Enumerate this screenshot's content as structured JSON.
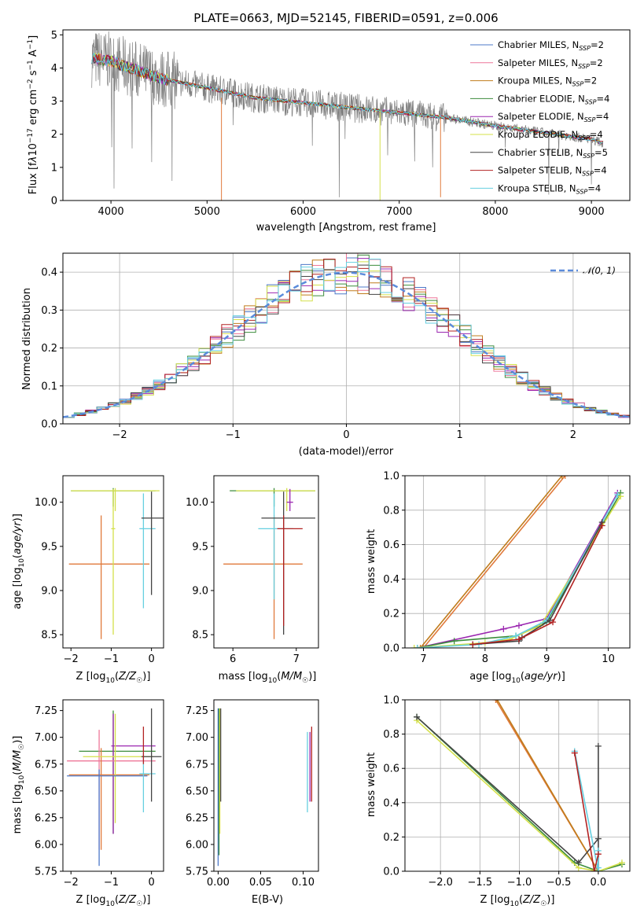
{
  "chart_data": [
    {
      "type": "line",
      "title": "PLATE=0663, MJD=52145, FIBERID=0591, z=0.006",
      "xlabel": "wavelength [Angstrom, rest frame]",
      "ylabel": "Flux [f_λ 10^-17 erg cm^-2 s^-1 A^-1]",
      "xlim": [
        3500,
        9400
      ],
      "ylim": [
        0,
        5.15
      ],
      "xticks": [
        4000,
        5000,
        6000,
        7000,
        8000,
        9000
      ],
      "yticks": [
        0,
        1,
        2,
        3,
        4,
        5
      ],
      "legend_position": "top-right",
      "series": [
        {
          "name": "Chabrier MILES, N_SSP=2",
          "color": "#4c78c8"
        },
        {
          "name": "Salpeter MILES, N_SSP=2",
          "color": "#ee7799"
        },
        {
          "name": "Kroupa MILES, N_SSP=2",
          "color": "#c07c1c"
        },
        {
          "name": "Chabrier ELODIE, N_SSP=4",
          "color": "#3c8c3c"
        },
        {
          "name": "Salpeter ELODIE, N_SSP=4",
          "color": "#9b27b0"
        },
        {
          "name": "Kroupa ELODIE, N_SSP=4",
          "color": "#d4e04a"
        },
        {
          "name": "Chabrier STELIB, N_SSP=5",
          "color": "#444444"
        },
        {
          "name": "Salpeter STELIB, N_SSP=4",
          "color": "#b22222"
        },
        {
          "name": "Kroupa STELIB, N_SSP=4",
          "color": "#66cfe0"
        }
      ],
      "continuum": {
        "x": [
          3800,
          4000,
          4500,
          5000,
          5500,
          6000,
          6500,
          7000,
          7500,
          8000,
          8500,
          9000,
          9100
        ],
        "y": [
          4.3,
          4.2,
          3.7,
          3.4,
          3.1,
          2.95,
          2.8,
          2.65,
          2.5,
          2.25,
          2.05,
          1.85,
          1.75
        ]
      }
    },
    {
      "type": "line",
      "xlabel": "(data-model)/error",
      "ylabel": "Normed distribution",
      "xlim": [
        -2.5,
        2.5
      ],
      "ylim": [
        0,
        0.45
      ],
      "xticks": [
        -2,
        -1,
        0,
        1,
        2
      ],
      "yticks": [
        0.0,
        0.1,
        0.2,
        0.3,
        0.4
      ],
      "legend": "𝒩(0, 1)",
      "legend_position": "top-right",
      "gaussian": {
        "mean": 0,
        "sigma": 1,
        "color": "#5b8bdb"
      },
      "bin_width": 0.1
    },
    {
      "type": "scatter",
      "xlabel": "Z [log10(Z/Z☉)]",
      "ylabel": "age  [log10(age/yr)]",
      "xlim": [
        -2.2,
        0.3
      ],
      "ylim": [
        8.35,
        10.3
      ],
      "xticks": [
        -2,
        -1,
        0
      ],
      "yticks": [
        8.5,
        9.0,
        9.5,
        10.0
      ],
      "points": [
        {
          "x": -0.95,
          "y": 10.13,
          "xlo": -2.0,
          "xhi": 0.1,
          "ylo": 9.95,
          "yhi": 10.16,
          "color": "#3c8c3c"
        },
        {
          "x": -0.9,
          "y": 10.13,
          "xlo": -2.0,
          "xhi": 0.2,
          "ylo": 9.9,
          "yhi": 10.16,
          "color": "#d4e04a"
        },
        {
          "x": -1.25,
          "y": 9.3,
          "xlo": -2.05,
          "xhi": -0.05,
          "ylo": 8.45,
          "yhi": 9.85,
          "color": "#e07a3c"
        },
        {
          "x": -0.2,
          "y": 9.7,
          "xlo": -0.3,
          "xhi": 0.1,
          "ylo": 8.8,
          "yhi": 10.1,
          "color": "#66cfe0"
        },
        {
          "x": 0.0,
          "y": 9.82,
          "xlo": -0.25,
          "xhi": 0.3,
          "ylo": 8.95,
          "yhi": 10.12,
          "color": "#444444"
        },
        {
          "x": -0.95,
          "y": 9.7,
          "xlo": -1.0,
          "xhi": -0.9,
          "ylo": 8.5,
          "yhi": 10.15,
          "color": "#d4e04a"
        }
      ]
    },
    {
      "type": "scatter",
      "xlabel": "mass [log10(M/M☉)]",
      "ylabel": "",
      "xlim": [
        5.7,
        7.35
      ],
      "ylim": [
        8.35,
        10.3
      ],
      "xticks": [
        6,
        7
      ],
      "yticks": [
        8.5,
        9.0,
        9.5,
        10.0
      ],
      "points": [
        {
          "x": 6.65,
          "y": 10.13,
          "xlo": 5.95,
          "xhi": 7.3,
          "ylo": 9.95,
          "yhi": 10.16,
          "color": "#3c8c3c"
        },
        {
          "x": 6.85,
          "y": 10.13,
          "xlo": 6.05,
          "xhi": 7.3,
          "ylo": 9.9,
          "yhi": 10.16,
          "color": "#d4e04a"
        },
        {
          "x": 6.65,
          "y": 9.3,
          "xlo": 5.85,
          "xhi": 7.1,
          "ylo": 8.45,
          "yhi": 9.85,
          "color": "#e07a3c"
        },
        {
          "x": 6.65,
          "y": 9.7,
          "xlo": 6.4,
          "xhi": 6.95,
          "ylo": 8.9,
          "yhi": 10.1,
          "color": "#66cfe0"
        },
        {
          "x": 6.8,
          "y": 9.82,
          "xlo": 6.45,
          "xhi": 7.3,
          "ylo": 8.5,
          "yhi": 10.12,
          "color": "#444444"
        },
        {
          "x": 6.8,
          "y": 9.7,
          "xlo": 6.7,
          "xhi": 7.1,
          "ylo": 8.6,
          "yhi": 9.85,
          "color": "#b22222"
        },
        {
          "x": 6.9,
          "y": 10.0,
          "xlo": 6.85,
          "xhi": 6.95,
          "ylo": 9.9,
          "yhi": 10.15,
          "color": "#9b27b0"
        }
      ]
    },
    {
      "type": "line",
      "xlabel": "age  [log10(age/yr)]",
      "ylabel": "mass weight",
      "xlim": [
        6.7,
        10.35
      ],
      "ylim": [
        0,
        1
      ],
      "xticks": [
        7,
        8,
        9,
        10
      ],
      "yticks": [
        0.0,
        0.2,
        0.4,
        0.6,
        0.8,
        1.0
      ],
      "series": [
        {
          "color": "#e07a3c",
          "x": [
            7.0,
            9.3
          ],
          "y": [
            0.0,
            1.0
          ]
        },
        {
          "color": "#c07c1c",
          "x": [
            6.95,
            9.25
          ],
          "y": [
            0.0,
            1.0
          ]
        },
        {
          "color": "#9b27b0",
          "x": [
            6.9,
            8.3,
            8.55,
            9.0,
            10.15
          ],
          "y": [
            0.0,
            0.11,
            0.13,
            0.17,
            0.9
          ]
        },
        {
          "color": "#3c8c3c",
          "x": [
            6.9,
            7.5,
            8.5,
            9.0,
            10.2
          ],
          "y": [
            0.0,
            0.04,
            0.07,
            0.15,
            0.9
          ]
        },
        {
          "color": "#d4e04a",
          "x": [
            6.85,
            8.0,
            8.4,
            8.9,
            10.2
          ],
          "y": [
            0.0,
            0.03,
            0.05,
            0.13,
            0.88
          ]
        },
        {
          "color": "#66cfe0",
          "x": [
            6.9,
            7.9,
            8.5,
            9.0,
            10.15
          ],
          "y": [
            0.0,
            0.02,
            0.07,
            0.16,
            0.89
          ]
        },
        {
          "color": "#444444",
          "x": [
            7.8,
            8.55,
            8.6,
            9.05,
            9.9
          ],
          "y": [
            0.02,
            0.04,
            0.06,
            0.16,
            0.73
          ]
        },
        {
          "color": "#b22222",
          "x": [
            7.8,
            8.55,
            9.1,
            9.9
          ],
          "y": [
            0.02,
            0.05,
            0.15,
            0.71
          ]
        }
      ]
    },
    {
      "type": "scatter",
      "xlabel": "Z [log10(Z/Z☉)]",
      "ylabel": "mass [log10(M/M☉)]",
      "xlim": [
        -2.2,
        0.3
      ],
      "ylim": [
        5.75,
        7.35
      ],
      "xticks": [
        -2,
        -1,
        0
      ],
      "yticks": [
        5.75,
        6.0,
        6.25,
        6.5,
        6.75,
        7.0,
        7.25
      ],
      "points": [
        {
          "x": -0.95,
          "y": 6.87,
          "xlo": -1.8,
          "xhi": 0.1,
          "ylo": 6.1,
          "yhi": 7.25,
          "color": "#3c8c3c"
        },
        {
          "x": -0.95,
          "y": 6.92,
          "xlo": -1.0,
          "xhi": 0.1,
          "ylo": 6.1,
          "yhi": 7.22,
          "color": "#9b27b0"
        },
        {
          "x": -1.3,
          "y": 6.78,
          "xlo": -2.1,
          "xhi": 0.1,
          "ylo": 5.95,
          "yhi": 7.07,
          "color": "#ee7799"
        },
        {
          "x": -1.25,
          "y": 6.65,
          "xlo": -2.05,
          "xhi": -0.05,
          "ylo": 5.95,
          "yhi": 6.9,
          "color": "#e07a3c"
        },
        {
          "x": -0.9,
          "y": 6.82,
          "xlo": -1.7,
          "xhi": 0.05,
          "ylo": 6.2,
          "yhi": 7.22,
          "color": "#d4e04a"
        },
        {
          "x": -1.3,
          "y": 6.64,
          "xlo": -2.1,
          "xhi": -0.1,
          "ylo": 5.8,
          "yhi": 6.7,
          "color": "#4c78c8"
        },
        {
          "x": -0.2,
          "y": 6.66,
          "xlo": -0.3,
          "xhi": 0.1,
          "ylo": 6.3,
          "yhi": 6.85,
          "color": "#66cfe0"
        },
        {
          "x": 0.0,
          "y": 6.82,
          "xlo": -0.25,
          "xhi": 0.25,
          "ylo": 6.4,
          "yhi": 7.27,
          "color": "#444444"
        },
        {
          "x": -0.2,
          "y": 6.95,
          "xlo": -0.2,
          "xhi": -0.2,
          "ylo": 6.75,
          "yhi": 7.1,
          "color": "#b22222"
        }
      ]
    },
    {
      "type": "scatter",
      "xlabel": "E(B-V)",
      "ylabel": "",
      "xlim": [
        -0.005,
        0.118
      ],
      "ylim": [
        5.75,
        7.35
      ],
      "xticks": [
        0.0,
        0.05,
        0.1
      ],
      "yticks": [
        5.75,
        6.0,
        6.25,
        6.5,
        6.75,
        7.0,
        7.25
      ],
      "points": [
        {
          "x": 0.0,
          "y": 6.6,
          "ylo": 5.8,
          "yhi": 7.27,
          "color": "#4c78c8"
        },
        {
          "x": 0.001,
          "y": 6.7,
          "ylo": 5.9,
          "yhi": 7.27,
          "color": "#3c8c3c"
        },
        {
          "x": 0.002,
          "y": 6.6,
          "ylo": 6.1,
          "yhi": 7.27,
          "color": "#d4e04a"
        },
        {
          "x": 0.003,
          "y": 6.75,
          "ylo": 6.4,
          "yhi": 7.27,
          "color": "#444444"
        },
        {
          "x": 0.105,
          "y": 6.7,
          "ylo": 6.3,
          "yhi": 7.05,
          "color": "#66cfe0"
        },
        {
          "x": 0.108,
          "y": 6.8,
          "ylo": 6.4,
          "yhi": 7.05,
          "color": "#9b27b0"
        },
        {
          "x": 0.11,
          "y": 6.9,
          "ylo": 6.4,
          "yhi": 7.1,
          "color": "#b22222"
        }
      ]
    },
    {
      "type": "line",
      "xlabel": "Z [log10(Z/Z☉)]",
      "ylabel": "mass weight",
      "xlim": [
        -2.45,
        0.4
      ],
      "ylim": [
        0,
        1
      ],
      "xticks": [
        -2.0,
        -1.5,
        -1.0,
        -0.5,
        0.0
      ],
      "yticks": [
        0.0,
        0.2,
        0.4,
        0.6,
        0.8,
        1.0
      ],
      "series": [
        {
          "color": "#e07a3c",
          "x": [
            -1.3,
            0.0
          ],
          "y": [
            1.0,
            0.0
          ]
        },
        {
          "color": "#c07c1c",
          "x": [
            -1.28,
            0.0
          ],
          "y": [
            1.0,
            0.0
          ]
        },
        {
          "color": "#3c8c3c",
          "x": [
            -2.3,
            -0.3,
            0.0,
            0.3
          ],
          "y": [
            0.9,
            0.05,
            0.0,
            0.04
          ]
        },
        {
          "color": "#d4e04a",
          "x": [
            -2.3,
            -0.25,
            0.0,
            0.3
          ],
          "y": [
            0.88,
            0.02,
            0.0,
            0.05
          ]
        },
        {
          "color": "#444444",
          "x": [
            -2.3,
            -0.25,
            0.0,
            0.0,
            0.0
          ],
          "y": [
            0.9,
            0.05,
            0.19,
            0.73,
            0.0
          ]
        },
        {
          "color": "#66cfe0",
          "x": [
            -0.3,
            0.0,
            0.0,
            0.0
          ],
          "y": [
            0.7,
            0.0,
            0.12,
            0.02
          ]
        },
        {
          "color": "#b22222",
          "x": [
            -0.3,
            -0.05,
            0.0
          ],
          "y": [
            0.69,
            0.0,
            0.1
          ]
        }
      ]
    }
  ]
}
